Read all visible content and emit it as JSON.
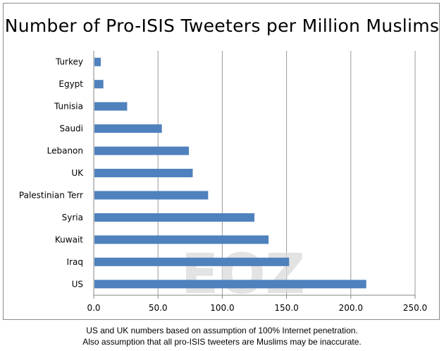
{
  "chart_data": {
    "type": "bar",
    "orientation": "horizontal",
    "title": "Number of Pro-ISIS Tweeters per Million Muslims",
    "categories": [
      "Turkey",
      "Egypt",
      "Tunisia",
      "Saudi",
      "Lebanon",
      "UK",
      "Palestinian Terr",
      "Syria",
      "Kuwait",
      "Iraq",
      "US"
    ],
    "values": [
      5.5,
      7.5,
      26,
      53,
      74,
      77,
      89,
      125,
      136,
      152,
      212
    ],
    "xlim": [
      0,
      250
    ],
    "xticks": [
      "0.0",
      "50.0",
      "100.0",
      "150.0",
      "200.0",
      "250.0"
    ],
    "xlabel": "",
    "ylabel": "",
    "grid": "vertical",
    "bar_color": "#4f81bd"
  },
  "watermark": "EOZ",
  "footnote": {
    "line1": "US and UK numbers based on assumption of 100% Internet penetration.",
    "line2": "Also assumption that all pro-ISIS tweeters are Muslims may be inaccurate."
  }
}
